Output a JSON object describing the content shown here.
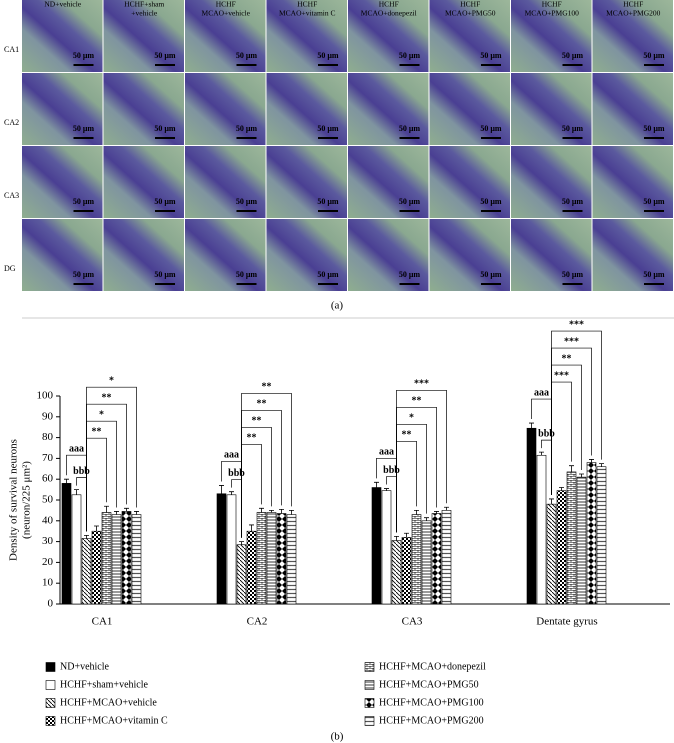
{
  "panel_a": {
    "columns": [
      [
        "ND+vehicle"
      ],
      [
        "HCHF+sham",
        "+vehicle"
      ],
      [
        "HCHF",
        "MCAO+vehicle"
      ],
      [
        "HCHF",
        "MCAO+vitamin C"
      ],
      [
        "HCHF",
        "MCAO+donepezil"
      ],
      [
        "HCHF",
        "MCAO+PMG50"
      ],
      [
        "HCHF",
        "MCAO+PMG100"
      ],
      [
        "HCHF",
        "MCAO+PMG200"
      ]
    ],
    "rows": [
      "CA1",
      "CA2",
      "CA3",
      "DG"
    ],
    "scale_bar": "50 μm",
    "caption": "(a)"
  },
  "chart_data": {
    "type": "bar",
    "ylabel": [
      "Density of survival neurons",
      "(neuron/225 μm²)"
    ],
    "categories": [
      "CA1",
      "CA2",
      "CA3",
      "Dentate gyrus"
    ],
    "series": [
      {
        "name": "ND+vehicle",
        "values": [
          58,
          53,
          56,
          84.5
        ],
        "errors": [
          2,
          4,
          2.5,
          2.5
        ]
      },
      {
        "name": "HCHF+sham+vehicle",
        "values": [
          52.5,
          52.5,
          54.5,
          71.5
        ],
        "errors": [
          2.5,
          1.5,
          1,
          1.5
        ]
      },
      {
        "name": "HCHF+MCAO+vehicle",
        "values": [
          31.5,
          28.5,
          30.5,
          48
        ],
        "errors": [
          1.5,
          1.5,
          2,
          2.5
        ]
      },
      {
        "name": "HCHF+MCAO+vitamin C",
        "values": [
          35,
          35,
          32,
          54.5
        ],
        "errors": [
          2.5,
          3,
          2,
          1.5
        ]
      },
      {
        "name": "HCHF+MCAO+donepezil",
        "values": [
          44,
          44,
          43,
          63.5
        ],
        "errors": [
          3,
          2,
          2,
          3
        ]
      },
      {
        "name": "HCHF+MCAO+PMG50",
        "values": [
          43,
          44,
          40,
          61
        ],
        "errors": [
          1.5,
          1,
          1.5,
          1.5
        ]
      },
      {
        "name": "HCHF+MCAO+PMG100",
        "values": [
          44.5,
          43.5,
          43.5,
          68
        ],
        "errors": [
          1.5,
          2,
          1,
          1.5
        ]
      },
      {
        "name": "HCHF+MCAO+PMG200",
        "values": [
          43,
          43,
          45,
          66
        ],
        "errors": [
          1.5,
          2,
          1.5,
          1.5
        ]
      }
    ],
    "significance": [
      [
        "aaa",
        "bbb",
        "**",
        "*",
        "**",
        "*"
      ],
      [
        "aaa",
        "bbb",
        "**",
        "**",
        "**",
        "**"
      ],
      [
        "aaa",
        "bbb",
        "**",
        "*",
        "**",
        "***"
      ],
      [
        "aaa",
        "bbb",
        "***",
        "**",
        "***",
        "***"
      ]
    ],
    "ylim": [
      0,
      100
    ],
    "yticks": [
      0,
      10,
      20,
      30,
      40,
      50,
      60,
      70,
      80,
      90,
      100
    ],
    "caption": "(b)"
  }
}
